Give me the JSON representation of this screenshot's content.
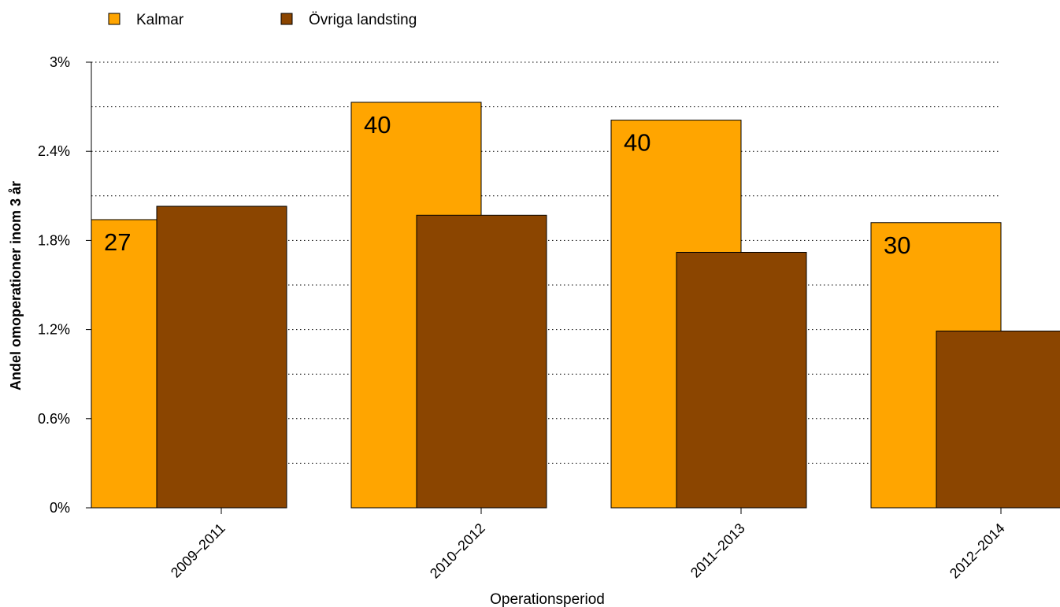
{
  "chart_data": {
    "type": "bar",
    "categories": [
      "2009–2011",
      "2010–2012",
      "2011–2013",
      "2012–2014"
    ],
    "series": [
      {
        "name": "Kalmar",
        "values": [
          1.94,
          2.73,
          2.61,
          1.92
        ],
        "labels": [
          "27",
          "40",
          "40",
          "30"
        ],
        "color": "#FFA500"
      },
      {
        "name": "Övriga landsting",
        "values": [
          2.03,
          1.97,
          1.72,
          1.19
        ],
        "labels": [],
        "color": "#8B4500"
      }
    ],
    "xlabel": "Operationsperiod",
    "ylabel": "Andel omoperationer inom 3 år",
    "ylim": [
      0,
      3
    ],
    "yticks": [
      0,
      0.6,
      1.2,
      1.8,
      2.4,
      3
    ],
    "ytick_labels": [
      "0%",
      "0.6%",
      "1.2%",
      "1.8%",
      "2.4%",
      "3%"
    ],
    "gridlines": [
      0.3,
      0.6,
      0.9,
      1.2,
      1.5,
      1.8,
      2.1,
      2.4,
      2.7,
      3.0
    ],
    "grid": true,
    "legend_position": "top-left"
  }
}
